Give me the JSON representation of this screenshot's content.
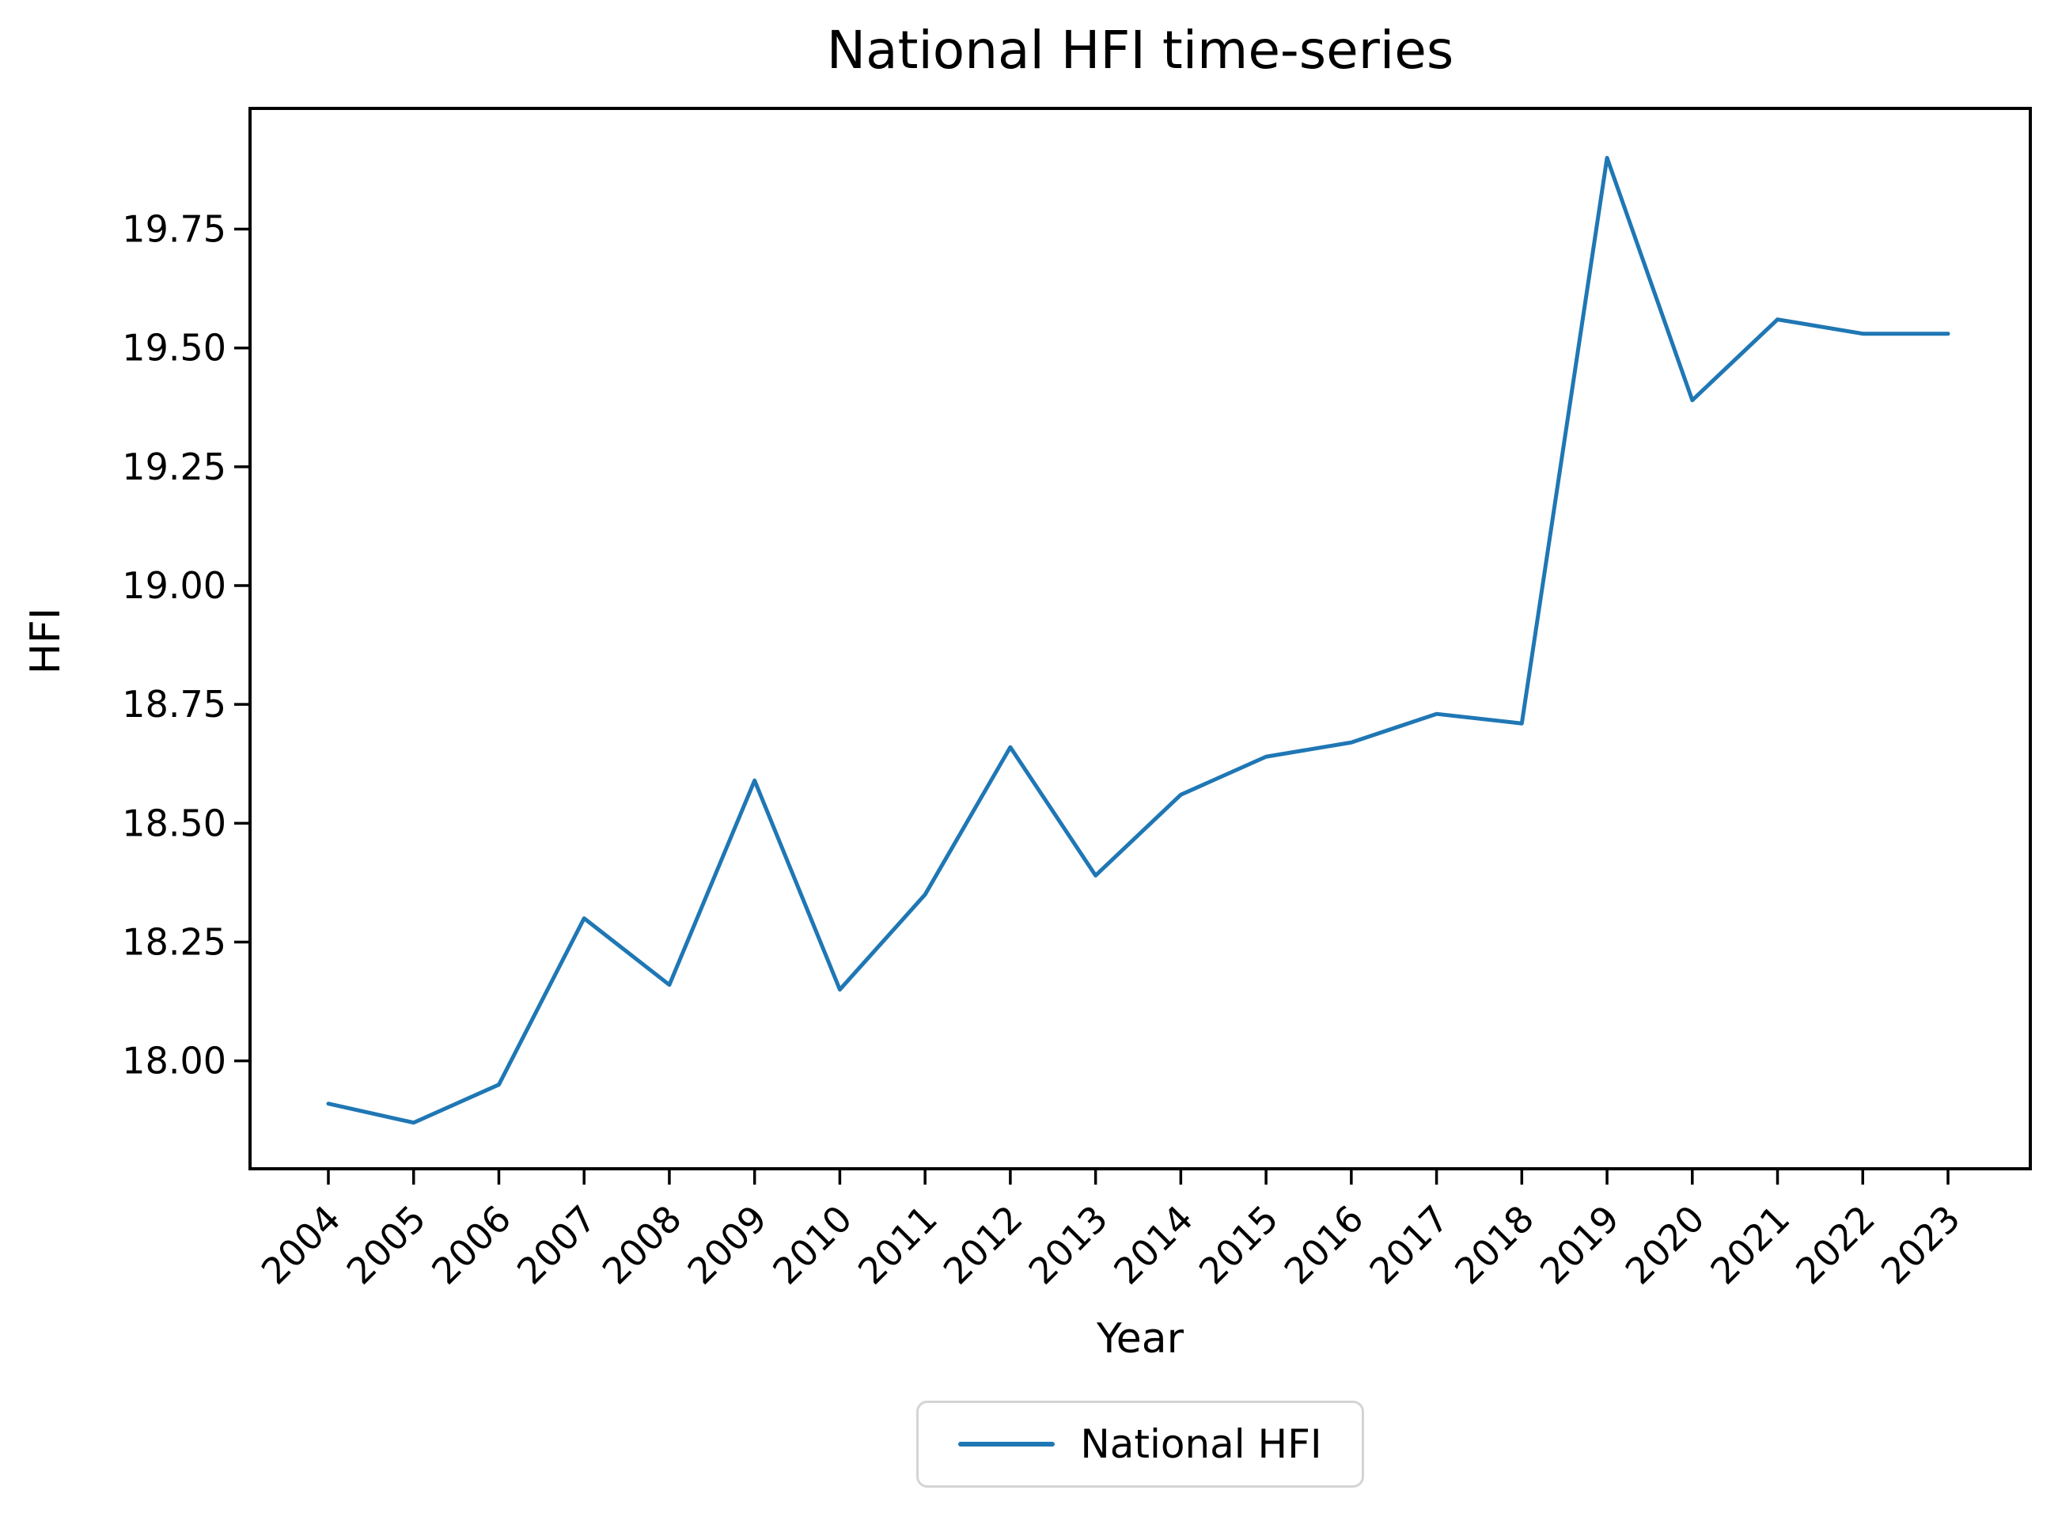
{
  "chart_data": {
    "type": "line",
    "title": "National HFI time-series",
    "xlabel": "Year",
    "ylabel": "HFI",
    "categories": [
      "2004",
      "2005",
      "2006",
      "2007",
      "2008",
      "2009",
      "2010",
      "2011",
      "2012",
      "2013",
      "2014",
      "2015",
      "2016",
      "2017",
      "2018",
      "2019",
      "2020",
      "2021",
      "2022",
      "2023"
    ],
    "series": [
      {
        "name": "National HFI",
        "color": "#1f77b4",
        "values": [
          17.91,
          17.87,
          17.95,
          18.3,
          18.16,
          18.59,
          18.15,
          18.35,
          18.66,
          18.39,
          18.56,
          18.64,
          18.67,
          18.73,
          18.71,
          19.9,
          19.39,
          19.56,
          19.53,
          19.53
        ]
      }
    ],
    "y_ticks": [
      18.0,
      18.25,
      18.5,
      18.75,
      19.0,
      19.25,
      19.5,
      19.75
    ],
    "ylim": [
      17.773,
      20.004
    ],
    "x_tick_rotation_deg": 45,
    "grid": false,
    "legend": {
      "entries": [
        "National HFI"
      ],
      "position": "lower center"
    }
  },
  "colors": {
    "line": "#1f77b4",
    "axis": "#000000",
    "text": "#000000",
    "legend_border": "#d4d4d4",
    "background": "#ffffff"
  }
}
